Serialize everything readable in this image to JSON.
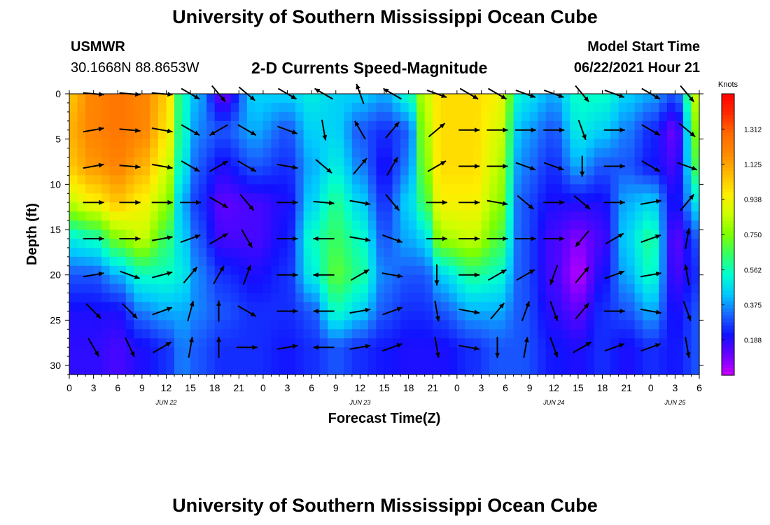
{
  "page": {
    "title_top": "University of Southern Mississippi Ocean Cube",
    "title_bottom": "University of Southern Mississippi Ocean Cube",
    "station_name": "USMWR",
    "station_coords": "30.1668N  88.8653W",
    "plot_title": "2-D Currents Speed-Magnitude",
    "model_start_label": "Model Start Time",
    "model_start_value": "06/22/2021 Hour 21"
  },
  "chart_data": {
    "type": "heatmap",
    "title": "2-D Currents Speed-Magnitude",
    "xlabel": "Forecast Time(Z)",
    "ylabel": "Depth (ft)",
    "x_ticks": [
      "0",
      "3",
      "6",
      "9",
      "12",
      "15",
      "18",
      "21",
      "0",
      "3",
      "6",
      "9",
      "12",
      "15",
      "18",
      "21",
      "0",
      "3",
      "6",
      "9",
      "12",
      "15",
      "18",
      "21",
      "0",
      "3",
      "6"
    ],
    "x_range_hours": [
      0,
      78
    ],
    "date_labels": [
      {
        "label": "JUN 22",
        "hour": 12
      },
      {
        "label": "JUN 23",
        "hour": 36
      },
      {
        "label": "JUN 24",
        "hour": 60
      },
      {
        "label": "JUN 25",
        "hour": 75
      }
    ],
    "y_ticks": [
      0,
      5,
      10,
      15,
      20,
      25,
      30
    ],
    "ylim": [
      0,
      31
    ],
    "y_inverted": true,
    "colorbar": {
      "unit_label": "Knots",
      "tick_labels": [
        "1.312",
        "1.125",
        "0.938",
        "0.750",
        "0.562",
        "0.375",
        "0.188"
      ],
      "range": [
        0.0,
        1.5
      ],
      "colors": [
        "#cc00ff",
        "#6a00ff",
        "#1111ff",
        "#1a66ff",
        "#00c8ff",
        "#00ffd0",
        "#33ff66",
        "#7dff00",
        "#ccff00",
        "#ffee00",
        "#ffbb00",
        "#ff8a00",
        "#ff6a00",
        "#ff2a00",
        "#ff0000"
      ]
    },
    "vector_depths_ft": [
      0,
      4,
      8,
      12,
      16,
      20,
      24,
      28
    ],
    "vector_hours": [
      3,
      7.5,
      11.5,
      15,
      18.5,
      22,
      27,
      31.5,
      36,
      40,
      45.5,
      49.5,
      53,
      56.5,
      60,
      63.5,
      67.5,
      72,
      76.5
    ],
    "speed_profile_by_hour": [
      {
        "hour": 0,
        "speeds": [
          1.05,
          1.1,
          1.05,
          0.85,
          0.5,
          0.3,
          0.2,
          0.18
        ]
      },
      {
        "hour": 3,
        "speeds": [
          1.2,
          1.2,
          1.15,
          0.95,
          0.55,
          0.3,
          0.2,
          0.18
        ]
      },
      {
        "hour": 6,
        "speeds": [
          1.25,
          1.25,
          1.2,
          1.05,
          0.75,
          0.4,
          0.2,
          0.15
        ]
      },
      {
        "hour": 9,
        "speeds": [
          1.2,
          1.2,
          1.1,
          0.95,
          0.85,
          0.55,
          0.35,
          0.2
        ]
      },
      {
        "hour": 12,
        "speeds": [
          1.05,
          1.0,
          0.9,
          0.8,
          0.65,
          0.55,
          0.4,
          0.25
        ]
      },
      {
        "hour": 14,
        "speeds": [
          0.55,
          0.55,
          0.5,
          0.4,
          0.45,
          0.5,
          0.4,
          0.35
        ]
      },
      {
        "hour": 16,
        "speeds": [
          0.4,
          0.35,
          0.3,
          0.25,
          0.3,
          0.35,
          0.35,
          0.3
        ]
      },
      {
        "hour": 19,
        "speeds": [
          0.1,
          0.3,
          0.2,
          0.12,
          0.15,
          0.25,
          0.3,
          0.25
        ]
      },
      {
        "hour": 23,
        "speeds": [
          0.45,
          0.4,
          0.3,
          0.15,
          0.15,
          0.2,
          0.25,
          0.25
        ]
      },
      {
        "hour": 27,
        "speeds": [
          0.45,
          0.3,
          0.25,
          0.2,
          0.22,
          0.25,
          0.25,
          0.22
        ]
      },
      {
        "hour": 30,
        "speeds": [
          0.5,
          0.45,
          0.4,
          0.45,
          0.55,
          0.5,
          0.3,
          0.25
        ]
      },
      {
        "hour": 33,
        "speeds": [
          0.45,
          0.45,
          0.5,
          0.6,
          0.65,
          0.7,
          0.55,
          0.3
        ]
      },
      {
        "hour": 36,
        "speeds": [
          0.45,
          0.3,
          0.35,
          0.45,
          0.55,
          0.6,
          0.45,
          0.25
        ]
      },
      {
        "hour": 39,
        "speeds": [
          0.4,
          0.25,
          0.2,
          0.25,
          0.3,
          0.35,
          0.3,
          0.22
        ]
      },
      {
        "hour": 42,
        "speeds": [
          0.55,
          0.3,
          0.35,
          0.45,
          0.4,
          0.3,
          0.25,
          0.2
        ]
      },
      {
        "hour": 44,
        "speeds": [
          0.85,
          0.8,
          0.75,
          0.65,
          0.45,
          0.3,
          0.25,
          0.2
        ]
      },
      {
        "hour": 46,
        "speeds": [
          1.0,
          1.0,
          1.0,
          0.95,
          0.8,
          0.45,
          0.3,
          0.2
        ]
      },
      {
        "hour": 50,
        "speeds": [
          1.0,
          1.0,
          1.0,
          0.95,
          0.85,
          0.6,
          0.4,
          0.25
        ]
      },
      {
        "hour": 53,
        "speeds": [
          0.95,
          0.9,
          0.85,
          0.8,
          0.7,
          0.55,
          0.4,
          0.3
        ]
      },
      {
        "hour": 56,
        "speeds": [
          0.5,
          0.4,
          0.35,
          0.3,
          0.3,
          0.3,
          0.3,
          0.3
        ]
      },
      {
        "hour": 60,
        "speeds": [
          0.4,
          0.3,
          0.25,
          0.2,
          0.15,
          0.15,
          0.18,
          0.22
        ]
      },
      {
        "hour": 63,
        "speeds": [
          0.55,
          0.5,
          0.4,
          0.2,
          0.08,
          0.03,
          0.12,
          0.2
        ]
      },
      {
        "hour": 66,
        "speeds": [
          0.55,
          0.45,
          0.3,
          0.2,
          0.15,
          0.2,
          0.25,
          0.25
        ]
      },
      {
        "hour": 69,
        "speeds": [
          0.45,
          0.35,
          0.3,
          0.4,
          0.45,
          0.4,
          0.3,
          0.2
        ]
      },
      {
        "hour": 72,
        "speeds": [
          0.4,
          0.25,
          0.22,
          0.45,
          0.6,
          0.55,
          0.4,
          0.25
        ]
      },
      {
        "hour": 75,
        "speeds": [
          0.3,
          0.1,
          0.15,
          0.2,
          0.12,
          0.15,
          0.2,
          0.22
        ]
      },
      {
        "hour": 78,
        "speeds": [
          0.9,
          0.8,
          0.7,
          0.5,
          0.3,
          0.25,
          0.3,
          0.3
        ]
      }
    ],
    "direction_profile_by_hour": [
      {
        "hour": 3,
        "dirs_deg": [
          95,
          80,
          80,
          90,
          90,
          80,
          135,
          150
        ]
      },
      {
        "hour": 7.5,
        "dirs_deg": [
          95,
          95,
          95,
          90,
          90,
          110,
          135,
          155
        ]
      },
      {
        "hour": 11.5,
        "dirs_deg": [
          95,
          100,
          100,
          90,
          80,
          75,
          70,
          60
        ]
      },
      {
        "hour": 15,
        "dirs_deg": [
          120,
          120,
          120,
          90,
          70,
          40,
          15,
          10
        ]
      },
      {
        "hour": 18.5,
        "dirs_deg": [
          140,
          240,
          60,
          120,
          60,
          30,
          0,
          0
        ]
      },
      {
        "hour": 22,
        "dirs_deg": [
          130,
          120,
          120,
          140,
          150,
          20,
          120,
          90
        ]
      },
      {
        "hour": 27,
        "dirs_deg": [
          120,
          110,
          100,
          90,
          90,
          90,
          90,
          80
        ]
      },
      {
        "hour": 31.5,
        "dirs_deg": [
          300,
          170,
          130,
          95,
          270,
          270,
          270,
          270
        ]
      },
      {
        "hour": 36,
        "dirs_deg": [
          340,
          330,
          40,
          100,
          100,
          60,
          80,
          80
        ]
      },
      {
        "hour": 40,
        "dirs_deg": [
          300,
          40,
          30,
          140,
          110,
          100,
          70,
          70
        ]
      },
      {
        "hour": 45.5,
        "dirs_deg": [
          110,
          50,
          60,
          90,
          90,
          180,
          170,
          170
        ]
      },
      {
        "hour": 49.5,
        "dirs_deg": [
          120,
          90,
          90,
          90,
          90,
          90,
          100,
          100
        ]
      },
      {
        "hour": 53,
        "dirs_deg": [
          120,
          90,
          90,
          100,
          90,
          60,
          40,
          180
        ]
      },
      {
        "hour": 56.5,
        "dirs_deg": [
          110,
          90,
          110,
          130,
          90,
          60,
          20,
          10
        ]
      },
      {
        "hour": 60,
        "dirs_deg": [
          110,
          90,
          110,
          90,
          90,
          200,
          160,
          160
        ]
      },
      {
        "hour": 63.5,
        "dirs_deg": [
          140,
          160,
          180,
          130,
          220,
          40,
          40,
          60
        ]
      },
      {
        "hour": 67.5,
        "dirs_deg": [
          110,
          90,
          90,
          90,
          60,
          70,
          90,
          70
        ]
      },
      {
        "hour": 72,
        "dirs_deg": [
          120,
          120,
          120,
          80,
          70,
          80,
          100,
          70
        ]
      },
      {
        "hour": 76.5,
        "dirs_deg": [
          140,
          130,
          110,
          40,
          10,
          350,
          160,
          170
        ]
      }
    ]
  }
}
